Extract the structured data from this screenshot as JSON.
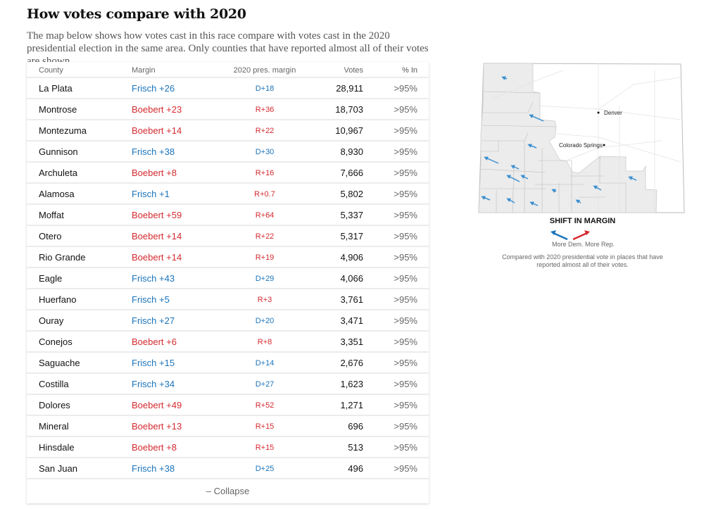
{
  "title": "How votes compare with 2020",
  "subtitle": "The map below shows how votes cast in this race compare with votes cast in the 2020 presidential election in the same area. Only counties that have reported almost all of their votes are shown.",
  "colors": {
    "dem": "#1a74bb",
    "rep": "#d42a2f"
  },
  "table": {
    "headers": [
      "County",
      "Margin",
      "2020 pres. margin",
      "Votes",
      "% In"
    ],
    "rows": [
      {
        "county": "La Plata",
        "margin": "Frisch +26",
        "party": "dem",
        "prev": "D+18",
        "prev_party": "dem",
        "votes": "28,911",
        "pct": ">95%"
      },
      {
        "county": "Montrose",
        "margin": "Boebert +23",
        "party": "rep",
        "prev": "R+36",
        "prev_party": "rep",
        "votes": "18,703",
        "pct": ">95%"
      },
      {
        "county": "Montezuma",
        "margin": "Boebert +14",
        "party": "rep",
        "prev": "R+22",
        "prev_party": "rep",
        "votes": "10,967",
        "pct": ">95%"
      },
      {
        "county": "Gunnison",
        "margin": "Frisch +38",
        "party": "dem",
        "prev": "D+30",
        "prev_party": "dem",
        "votes": "8,930",
        "pct": ">95%"
      },
      {
        "county": "Archuleta",
        "margin": "Boebert +8",
        "party": "rep",
        "prev": "R+16",
        "prev_party": "rep",
        "votes": "7,666",
        "pct": ">95%"
      },
      {
        "county": "Alamosa",
        "margin": "Frisch +1",
        "party": "dem",
        "prev": "R+0.7",
        "prev_party": "rep",
        "votes": "5,802",
        "pct": ">95%"
      },
      {
        "county": "Moffat",
        "margin": "Boebert +59",
        "party": "rep",
        "prev": "R+64",
        "prev_party": "rep",
        "votes": "5,337",
        "pct": ">95%"
      },
      {
        "county": "Otero",
        "margin": "Boebert +14",
        "party": "rep",
        "prev": "R+22",
        "prev_party": "rep",
        "votes": "5,317",
        "pct": ">95%"
      },
      {
        "county": "Rio Grande",
        "margin": "Boebert +14",
        "party": "rep",
        "prev": "R+19",
        "prev_party": "rep",
        "votes": "4,906",
        "pct": ">95%"
      },
      {
        "county": "Eagle",
        "margin": "Frisch +43",
        "party": "dem",
        "prev": "D+29",
        "prev_party": "dem",
        "votes": "4,066",
        "pct": ">95%"
      },
      {
        "county": "Huerfano",
        "margin": "Frisch +5",
        "party": "dem",
        "prev": "R+3",
        "prev_party": "rep",
        "votes": "3,761",
        "pct": ">95%"
      },
      {
        "county": "Ouray",
        "margin": "Frisch +27",
        "party": "dem",
        "prev": "D+20",
        "prev_party": "dem",
        "votes": "3,471",
        "pct": ">95%"
      },
      {
        "county": "Conejos",
        "margin": "Boebert +6",
        "party": "rep",
        "prev": "R+8",
        "prev_party": "rep",
        "votes": "3,351",
        "pct": ">95%"
      },
      {
        "county": "Saguache",
        "margin": "Frisch +15",
        "party": "dem",
        "prev": "D+14",
        "prev_party": "dem",
        "votes": "2,676",
        "pct": ">95%"
      },
      {
        "county": "Costilla",
        "margin": "Frisch +34",
        "party": "dem",
        "prev": "D+27",
        "prev_party": "dem",
        "votes": "1,623",
        "pct": ">95%"
      },
      {
        "county": "Dolores",
        "margin": "Boebert +49",
        "party": "rep",
        "prev": "R+52",
        "prev_party": "rep",
        "votes": "1,271",
        "pct": ">95%"
      },
      {
        "county": "Mineral",
        "margin": "Boebert +13",
        "party": "rep",
        "prev": "R+15",
        "prev_party": "rep",
        "votes": "696",
        "pct": ">95%"
      },
      {
        "county": "Hinsdale",
        "margin": "Boebert +8",
        "party": "rep",
        "prev": "R+15",
        "prev_party": "rep",
        "votes": "513",
        "pct": ">95%"
      },
      {
        "county": "San Juan",
        "margin": "Frisch +38",
        "party": "dem",
        "prev": "D+25",
        "prev_party": "dem",
        "votes": "496",
        "pct": ">95%"
      }
    ],
    "collapse_label": "– Collapse"
  },
  "map": {
    "cities": [
      "Denver",
      "Colorado Springs"
    ],
    "legend_title": "SHIFT IN MARGIN",
    "legend_dem": "More Dem.",
    "legend_rep": "More Rep.",
    "note": "Compared with 2020 presidential vote in places that have reported almost all of their votes."
  }
}
